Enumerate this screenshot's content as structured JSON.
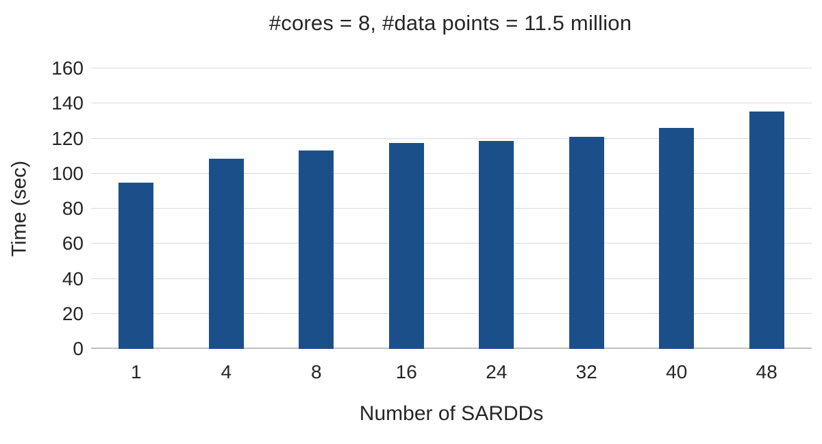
{
  "chart_data": {
    "type": "bar",
    "title": "#cores = 8, #data points = 11.5 million",
    "xlabel": "Number of SARDDs",
    "ylabel": "Time (sec)",
    "categories": [
      "1",
      "4",
      "8",
      "16",
      "24",
      "32",
      "40",
      "48"
    ],
    "values": [
      95,
      108.5,
      113,
      117.5,
      118.5,
      121,
      126,
      135.5
    ],
    "ylim": [
      0,
      160
    ],
    "yticks": [
      0,
      20,
      40,
      60,
      80,
      100,
      120,
      140,
      160
    ],
    "grid": "horizontal",
    "legend": "none",
    "bar_color": "#1b4f8a",
    "gridline_color": "#d9d9d9",
    "axis_line_color": "#bfbfbf",
    "text_color": "#262626",
    "background_color": "#ffffff"
  }
}
